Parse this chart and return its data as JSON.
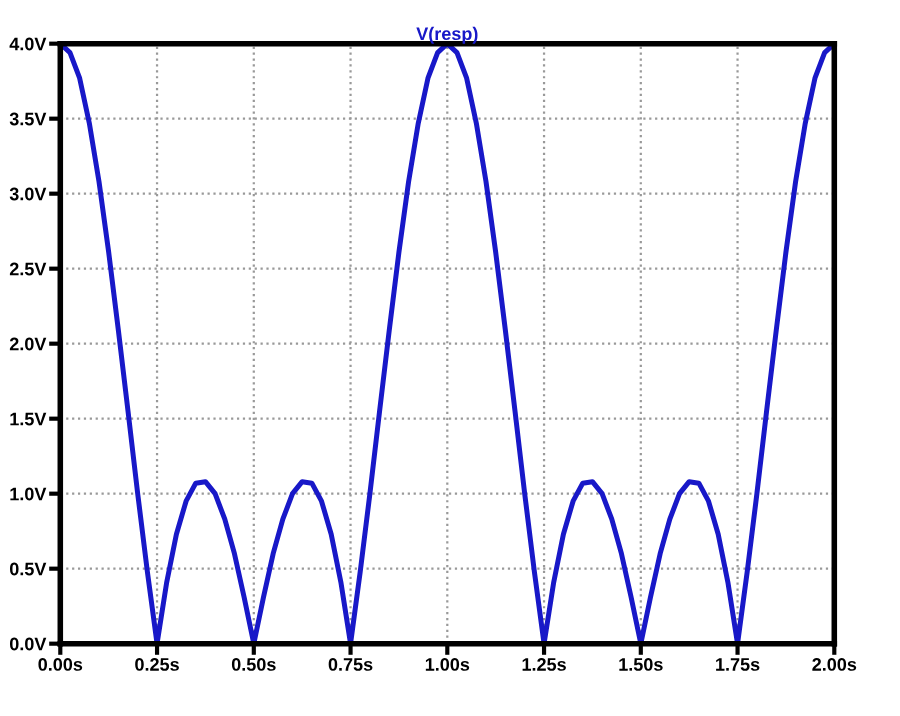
{
  "chart_data": {
    "type": "line",
    "title": "V(resp)",
    "x": [
      0,
      0.025,
      0.05,
      0.075,
      0.1,
      0.125,
      0.15,
      0.175,
      0.2,
      0.225,
      0.25,
      0.275,
      0.3,
      0.325,
      0.35,
      0.375,
      0.4,
      0.425,
      0.45,
      0.475,
      0.5,
      0.525,
      0.55,
      0.575,
      0.6,
      0.625,
      0.65,
      0.675,
      0.7,
      0.725,
      0.75,
      0.775,
      0.8,
      0.825,
      0.85,
      0.875,
      0.9,
      0.925,
      0.95,
      0.975,
      1,
      1.025,
      1.05,
      1.075,
      1.1,
      1.125,
      1.15,
      1.175,
      1.2,
      1.225,
      1.25,
      1.275,
      1.3,
      1.325,
      1.35,
      1.375,
      1.4,
      1.425,
      1.45,
      1.475,
      1.5,
      1.525,
      1.55,
      1.575,
      1.6,
      1.625,
      1.65,
      1.675,
      1.7,
      1.725,
      1.75,
      1.775,
      1.8,
      1.825,
      1.85,
      1.875,
      1.9,
      1.925,
      1.95,
      1.975,
      2
    ],
    "series": [
      {
        "color": "#1818c8",
        "values": [
          4.0,
          3.94,
          3.77,
          3.47,
          3.08,
          2.61,
          2.09,
          1.55,
          1.0,
          0.48,
          0,
          0.41,
          0.73,
          0.95,
          1.07,
          1.08,
          1.0,
          0.83,
          0.6,
          0.31,
          0,
          0.31,
          0.6,
          0.83,
          1.0,
          1.08,
          1.07,
          0.95,
          0.73,
          0.41,
          0,
          0.48,
          1.0,
          1.55,
          2.09,
          2.61,
          3.08,
          3.47,
          3.77,
          3.94,
          4.0,
          3.94,
          3.77,
          3.47,
          3.08,
          2.61,
          2.09,
          1.55,
          1.0,
          0.48,
          0,
          0.41,
          0.73,
          0.95,
          1.07,
          1.08,
          1.0,
          0.83,
          0.6,
          0.31,
          0,
          0.31,
          0.6,
          0.83,
          1.0,
          1.08,
          1.07,
          0.95,
          0.73,
          0.41,
          0,
          0.48,
          1.0,
          1.55,
          2.09,
          2.61,
          3.08,
          3.47,
          3.77,
          3.94,
          4.0
        ]
      }
    ],
    "xlim": [
      0,
      2
    ],
    "ylim": [
      0,
      4
    ],
    "xticks": [
      {
        "value": 0,
        "label": "0.00s"
      },
      {
        "value": 0.25,
        "label": "0.25s"
      },
      {
        "value": 0.5,
        "label": "0.50s"
      },
      {
        "value": 0.75,
        "label": "0.75s"
      },
      {
        "value": 1,
        "label": "1.00s"
      },
      {
        "value": 1.25,
        "label": "1.25s"
      },
      {
        "value": 1.5,
        "label": "1.50s"
      },
      {
        "value": 1.75,
        "label": "1.75s"
      },
      {
        "value": 2,
        "label": "2.00s"
      }
    ],
    "yticks": [
      {
        "value": 0,
        "label": "0.0V"
      },
      {
        "value": 0.5,
        "label": "0.5V"
      },
      {
        "value": 1,
        "label": "1.0V"
      },
      {
        "value": 1.5,
        "label": "1.5V"
      },
      {
        "value": 2,
        "label": "2.0V"
      },
      {
        "value": 2.5,
        "label": "2.5V"
      },
      {
        "value": 3,
        "label": "3.0V"
      },
      {
        "value": 3.5,
        "label": "3.5V"
      },
      {
        "value": 4,
        "label": "4.0V"
      }
    ],
    "grid": true,
    "line_style": "solid",
    "marker": "none",
    "legend": false
  }
}
